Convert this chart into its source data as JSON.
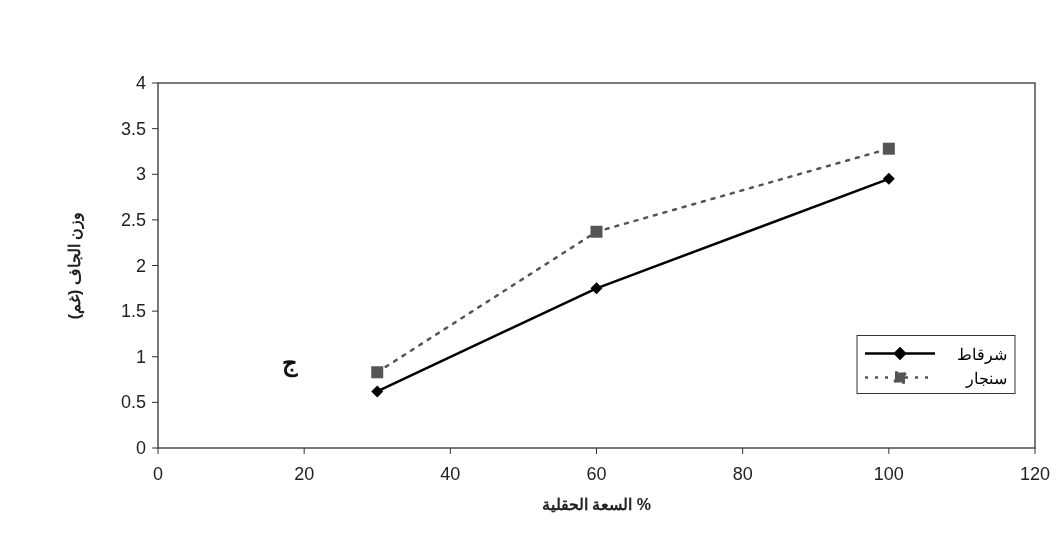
{
  "chart_data": {
    "type": "line",
    "xlabel": "السعة الحقلية %",
    "ylabel": "وزن الجاف (غم)",
    "x": [
      30,
      60,
      100
    ],
    "series": [
      {
        "name": "شرقاط",
        "color": "#000000",
        "values": [
          0.62,
          1.75,
          2.95
        ],
        "marker": "diamond",
        "line_style": "solid"
      },
      {
        "name": "سنجار",
        "color": "#555555",
        "values": [
          0.83,
          2.37,
          3.28
        ],
        "marker": "square",
        "line_style": "dotted"
      }
    ],
    "xlim": [
      0,
      120
    ],
    "xticks": [
      0,
      20,
      40,
      60,
      80,
      100,
      120
    ],
    "ylim": [
      0,
      4
    ],
    "yticks": [
      0,
      0.5,
      1,
      1.5,
      2,
      2.5,
      3,
      3.5,
      4
    ],
    "grid": false,
    "legend": "right",
    "annotations": [
      "ج"
    ]
  }
}
